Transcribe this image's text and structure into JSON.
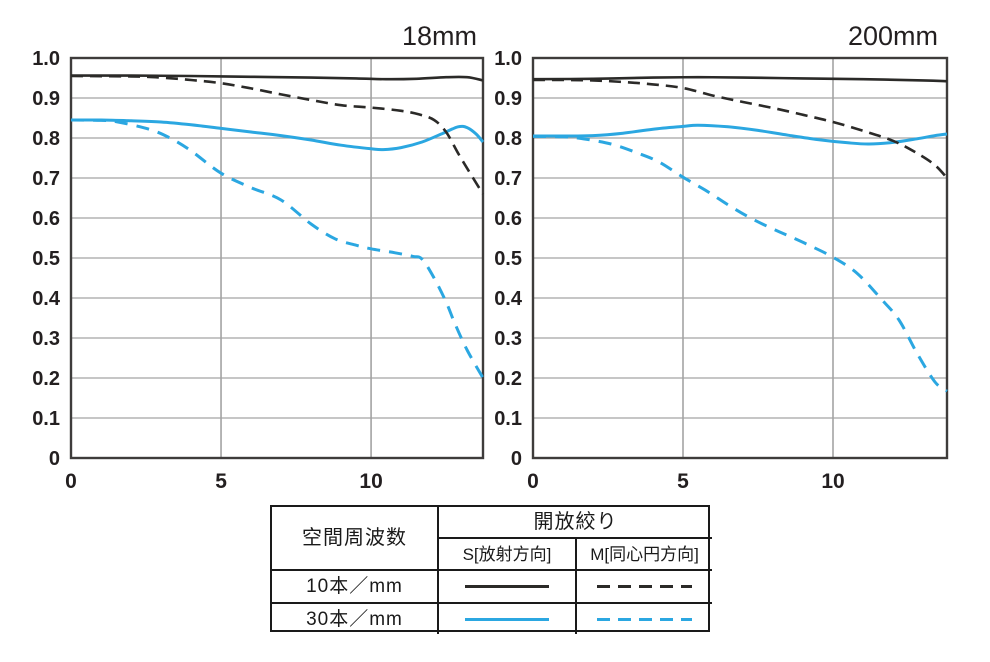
{
  "colors": {
    "black_curve": "#2b2a28",
    "blue_curve": "#2ba7e1",
    "grid": "#a3a3a3",
    "border": "#3e3c3b",
    "text": "#231f20"
  },
  "chart_data": [
    {
      "type": "line",
      "title": "18mm",
      "xlabel": "",
      "ylabel": "",
      "xlim": [
        0,
        13.73
      ],
      "ylim": [
        0,
        1.0
      ],
      "grid": true,
      "x_ticks": [
        {
          "v": 0,
          "label": "0"
        },
        {
          "v": 5,
          "label": "5"
        },
        {
          "v": 10,
          "label": "10"
        }
      ],
      "y_ticks": [
        {
          "v": 1.0,
          "label": "1.0"
        },
        {
          "v": 0.9,
          "label": "0.9"
        },
        {
          "v": 0.8,
          "label": "0.8"
        },
        {
          "v": 0.7,
          "label": "0.7"
        },
        {
          "v": 0.6,
          "label": "0.6"
        },
        {
          "v": 0.5,
          "label": "0.5"
        },
        {
          "v": 0.4,
          "label": "0.4"
        },
        {
          "v": 0.3,
          "label": "0.3"
        },
        {
          "v": 0.2,
          "label": "0.2"
        },
        {
          "v": 0.1,
          "label": "0.1"
        },
        {
          "v": 0,
          "label": "0"
        }
      ],
      "series": [
        {
          "name": "10本/mm S[放射方向]",
          "color_key": "black_curve",
          "dashed": false,
          "points": [
            [
              0,
              0.956
            ],
            [
              2,
              0.956
            ],
            [
              4,
              0.955
            ],
            [
              6,
              0.953
            ],
            [
              8,
              0.951
            ],
            [
              9.5,
              0.949
            ],
            [
              10.5,
              0.947
            ],
            [
              11.5,
              0.948
            ],
            [
              12.5,
              0.952
            ],
            [
              13.2,
              0.952
            ],
            [
              13.73,
              0.944
            ]
          ]
        },
        {
          "name": "10本/mm M[同心円方向]",
          "color_key": "black_curve",
          "dashed": true,
          "points": [
            [
              0,
              0.955
            ],
            [
              2,
              0.954
            ],
            [
              3,
              0.951
            ],
            [
              4,
              0.945
            ],
            [
              5,
              0.937
            ],
            [
              6,
              0.924
            ],
            [
              7,
              0.909
            ],
            [
              8,
              0.895
            ],
            [
              9,
              0.882
            ],
            [
              10,
              0.876
            ],
            [
              11,
              0.868
            ],
            [
              11.6,
              0.859
            ],
            [
              12.1,
              0.845
            ],
            [
              12.5,
              0.815
            ],
            [
              12.9,
              0.762
            ],
            [
              13.3,
              0.712
            ],
            [
              13.73,
              0.66
            ]
          ]
        },
        {
          "name": "30本/mm S[放射方向]",
          "color_key": "blue_curve",
          "dashed": false,
          "points": [
            [
              0,
              0.845
            ],
            [
              1,
              0.845
            ],
            [
              2,
              0.843
            ],
            [
              3,
              0.84
            ],
            [
              4,
              0.833
            ],
            [
              5,
              0.824
            ],
            [
              6,
              0.815
            ],
            [
              7,
              0.806
            ],
            [
              8,
              0.795
            ],
            [
              9,
              0.782
            ],
            [
              10,
              0.773
            ],
            [
              10.4,
              0.771
            ],
            [
              11,
              0.776
            ],
            [
              11.7,
              0.79
            ],
            [
              12.4,
              0.812
            ],
            [
              12.9,
              0.828
            ],
            [
              13.2,
              0.826
            ],
            [
              13.5,
              0.81
            ],
            [
              13.73,
              0.79
            ]
          ]
        },
        {
          "name": "30本/mm M[同心円方向]",
          "color_key": "blue_curve",
          "dashed": true,
          "points": [
            [
              0,
              0.845
            ],
            [
              1,
              0.844
            ],
            [
              1.5,
              0.841
            ],
            [
              2.6,
              0.822
            ],
            [
              3.3,
              0.8
            ],
            [
              4,
              0.768
            ],
            [
              5,
              0.712
            ],
            [
              6,
              0.676
            ],
            [
              7,
              0.645
            ],
            [
              8,
              0.585
            ],
            [
              8.8,
              0.548
            ],
            [
              9.5,
              0.532
            ],
            [
              10,
              0.523
            ],
            [
              10.8,
              0.513
            ],
            [
              11.4,
              0.504
            ],
            [
              11.7,
              0.497
            ],
            [
              12.1,
              0.45
            ],
            [
              12.5,
              0.39
            ],
            [
              12.8,
              0.335
            ],
            [
              13.2,
              0.27
            ],
            [
              13.73,
              0.2
            ]
          ]
        }
      ]
    },
    {
      "type": "line",
      "title": "200mm",
      "xlabel": "",
      "ylabel": "",
      "xlim": [
        0,
        13.8
      ],
      "ylim": [
        0,
        1.0
      ],
      "grid": true,
      "x_ticks": [
        {
          "v": 0,
          "label": "0"
        },
        {
          "v": 5,
          "label": "5"
        },
        {
          "v": 10,
          "label": "10"
        }
      ],
      "y_ticks": [
        {
          "v": 1.0,
          "label": "1.0"
        },
        {
          "v": 0.9,
          "label": "0.9"
        },
        {
          "v": 0.8,
          "label": "0.8"
        },
        {
          "v": 0.7,
          "label": "0.7"
        },
        {
          "v": 0.6,
          "label": "0.6"
        },
        {
          "v": 0.5,
          "label": "0.5"
        },
        {
          "v": 0.4,
          "label": "0.4"
        },
        {
          "v": 0.3,
          "label": "0.3"
        },
        {
          "v": 0.2,
          "label": "0.2"
        },
        {
          "v": 0.1,
          "label": "0.1"
        },
        {
          "v": 0,
          "label": "0"
        }
      ],
      "series": [
        {
          "name": "10本/mm S[放射方向]",
          "color_key": "black_curve",
          "dashed": false,
          "points": [
            [
              0,
              0.947
            ],
            [
              2,
              0.948
            ],
            [
              4,
              0.951
            ],
            [
              5.5,
              0.952
            ],
            [
              7,
              0.951
            ],
            [
              9,
              0.949
            ],
            [
              11,
              0.947
            ],
            [
              13,
              0.944
            ],
            [
              13.8,
              0.942
            ]
          ]
        },
        {
          "name": "10本/mm M[同心円方向]",
          "color_key": "black_curve",
          "dashed": true,
          "points": [
            [
              0,
              0.945
            ],
            [
              1,
              0.945
            ],
            [
              2,
              0.944
            ],
            [
              3,
              0.94
            ],
            [
              4,
              0.934
            ],
            [
              5,
              0.925
            ],
            [
              6,
              0.906
            ],
            [
              7,
              0.89
            ],
            [
              8,
              0.875
            ],
            [
              9,
              0.858
            ],
            [
              10,
              0.84
            ],
            [
              11,
              0.818
            ],
            [
              12,
              0.793
            ],
            [
              12.8,
              0.762
            ],
            [
              13.4,
              0.732
            ],
            [
              13.8,
              0.7
            ]
          ]
        },
        {
          "name": "30本/mm S[放射方向]",
          "color_key": "blue_curve",
          "dashed": false,
          "points": [
            [
              0,
              0.805
            ],
            [
              1,
              0.805
            ],
            [
              2,
              0.806
            ],
            [
              3,
              0.812
            ],
            [
              4,
              0.822
            ],
            [
              5,
              0.829
            ],
            [
              5.5,
              0.832
            ],
            [
              6.5,
              0.828
            ],
            [
              7.5,
              0.819
            ],
            [
              8.5,
              0.807
            ],
            [
              9.5,
              0.796
            ],
            [
              10.5,
              0.788
            ],
            [
              11.2,
              0.785
            ],
            [
              12,
              0.789
            ],
            [
              12.8,
              0.798
            ],
            [
              13.4,
              0.806
            ],
            [
              13.8,
              0.81
            ]
          ]
        },
        {
          "name": "30本/mm M[同心円方向]",
          "color_key": "blue_curve",
          "dashed": true,
          "points": [
            [
              0,
              0.804
            ],
            [
              1,
              0.803
            ],
            [
              1.5,
              0.8
            ],
            [
              2.6,
              0.785
            ],
            [
              3.5,
              0.762
            ],
            [
              4.2,
              0.74
            ],
            [
              5,
              0.702
            ],
            [
              5.8,
              0.667
            ],
            [
              6.5,
              0.633
            ],
            [
              7.2,
              0.602
            ],
            [
              7.9,
              0.576
            ],
            [
              8.5,
              0.556
            ],
            [
              9.2,
              0.532
            ],
            [
              10,
              0.502
            ],
            [
              10.8,
              0.462
            ],
            [
              11.6,
              0.398
            ],
            [
              12.2,
              0.345
            ],
            [
              12.8,
              0.262
            ],
            [
              13.4,
              0.19
            ],
            [
              13.8,
              0.167
            ]
          ]
        }
      ]
    }
  ],
  "legend": {
    "spatial_frequency_header": "空間周波数",
    "aperture_header": "開放絞り",
    "sub_s": "S[放射方向]",
    "sub_m": "M[同心円方向]",
    "rows": [
      {
        "label": "10本／mm",
        "color_key": "black_curve"
      },
      {
        "label": "30本／mm",
        "color_key": "blue_curve"
      }
    ]
  }
}
